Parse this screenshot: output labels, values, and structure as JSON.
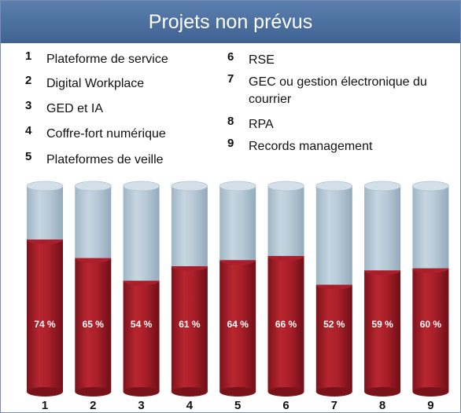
{
  "chart_data": {
    "type": "bar",
    "title": "Projets non prévus",
    "categories": [
      "1",
      "2",
      "3",
      "4",
      "5",
      "6",
      "7",
      "8",
      "9"
    ],
    "values": [
      74,
      65,
      54,
      61,
      64,
      66,
      52,
      59,
      60
    ],
    "value_labels": [
      "74 %",
      "65 %",
      "54 %",
      "61 %",
      "64 %",
      "66 %",
      "52 %",
      "59 %",
      "60 %"
    ],
    "ylim": [
      0,
      100
    ],
    "legend": [
      {
        "num": "1",
        "label": "Plateforme de service"
      },
      {
        "num": "2",
        "label": "Digital Workplace"
      },
      {
        "num": "3",
        "label": "GED et IA"
      },
      {
        "num": "4",
        "label": "Coffre-fort numérique"
      },
      {
        "num": "5",
        "label": "Plateformes de veille"
      },
      {
        "num": "6",
        "label": "RSE"
      },
      {
        "num": "7",
        "label": "GEC ou gestion électronique du courrier"
      },
      {
        "num": "8",
        "label": "RPA"
      },
      {
        "num": "9",
        "label": "Records management"
      }
    ],
    "colors": {
      "filled": "#a91f2b",
      "remaining": "#b7cad6",
      "header": "#4a6c9b"
    }
  }
}
